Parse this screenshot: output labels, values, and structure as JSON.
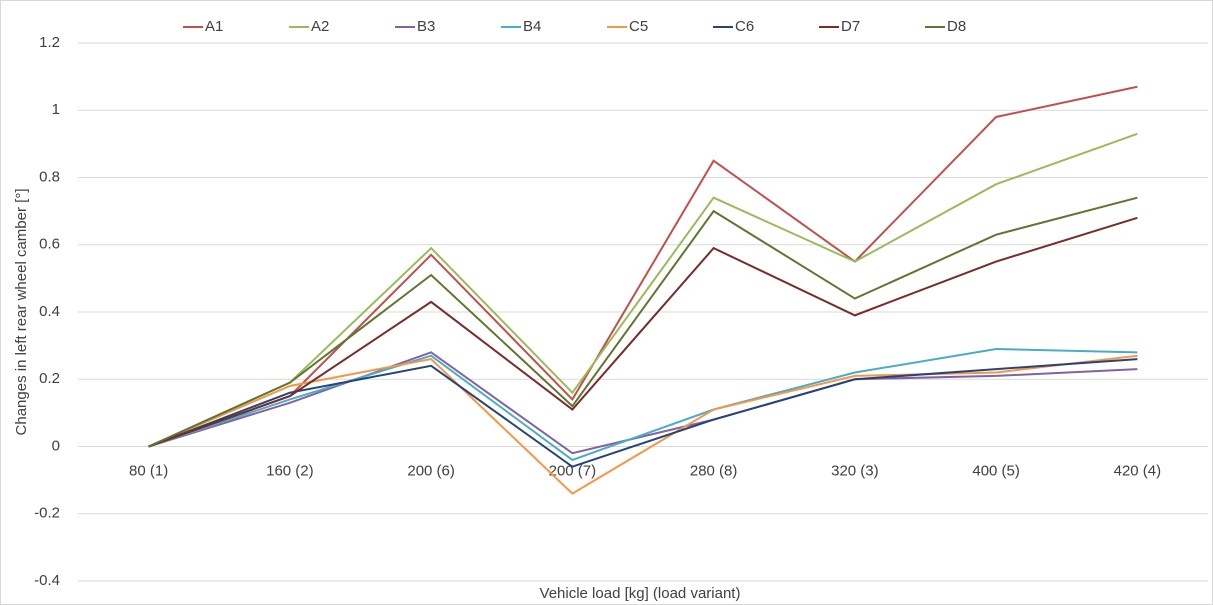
{
  "chart_data": {
    "type": "line",
    "x_label": "Vehicle load [kg] (load variant)",
    "y_label": "Changes in left rear wheel camber [°]",
    "categories": [
      "80 (1)",
      "160 (2)",
      "200 (6)",
      "200 (7)",
      "280 (8)",
      "320 (3)",
      "400 (5)",
      "420 (4)"
    ],
    "series": [
      {
        "name": "A1",
        "color": "#c0504d",
        "values": [
          0,
          0.15,
          0.57,
          0.14,
          0.85,
          0.55,
          0.98,
          1.07
        ]
      },
      {
        "name": "A2",
        "color": "#9bbb59",
        "values": [
          0,
          0.19,
          0.59,
          0.16,
          0.74,
          0.55,
          0.78,
          0.93
        ]
      },
      {
        "name": "B3",
        "color": "#8064a2",
        "values": [
          0,
          0.13,
          0.28,
          -0.02,
          0.08,
          0.2,
          0.21,
          0.23
        ]
      },
      {
        "name": "B4",
        "color": "#4bacc6",
        "values": [
          0,
          0.14,
          0.27,
          -0.04,
          0.11,
          0.22,
          0.29,
          0.28
        ]
      },
      {
        "name": "C5",
        "color": "#f79646",
        "values": [
          0,
          0.18,
          0.26,
          -0.14,
          0.11,
          0.21,
          0.22,
          0.27
        ]
      },
      {
        "name": "C6",
        "color": "#264478",
        "values": [
          0,
          0.16,
          0.24,
          -0.06,
          0.08,
          0.2,
          0.23,
          0.26
        ]
      },
      {
        "name": "D7",
        "color": "#772c2a",
        "values": [
          0,
          0.15,
          0.43,
          0.11,
          0.59,
          0.39,
          0.55,
          0.68
        ]
      },
      {
        "name": "D8",
        "color": "#5f7530",
        "values": [
          0,
          0.19,
          0.51,
          0.12,
          0.7,
          0.44,
          0.63,
          0.74
        ]
      }
    ],
    "ylim": [
      -0.4,
      1.2
    ],
    "yticks": [
      -0.4,
      -0.2,
      0,
      0.2,
      0.4,
      0.6,
      0.8,
      1,
      1.2
    ],
    "grid": true,
    "legend": "top"
  }
}
